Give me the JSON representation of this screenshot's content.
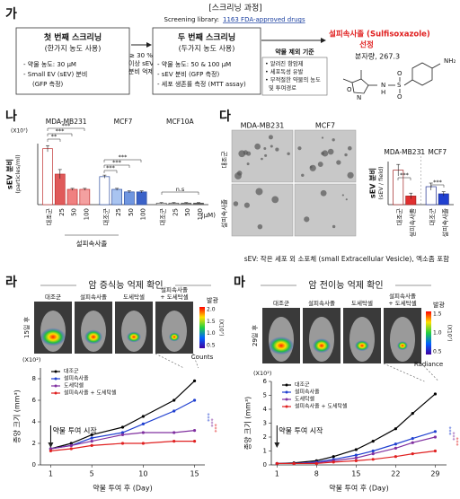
{
  "screening": {
    "letter": "가",
    "title": "[스크리닝 과정]",
    "library_label": "Screening library:",
    "library": "1163 FDA-approved drugs",
    "first": {
      "title": "첫 번째 스크리닝",
      "subtitle": "(한가지 농도 사용)",
      "items": [
        "- 약물 농도: 30 μM",
        "- Small EV (sEV) 분비",
        "(GFP 측정)"
      ]
    },
    "criterion": [
      "≥ 30 %",
      "이상 sEV",
      "분비 억제"
    ],
    "second": {
      "title": "두 번째 스크리닝",
      "subtitle": "(두가지 농도 사용)",
      "items": [
        "- 약물 농도: 50 & 100 μM",
        "- sEV 분비 (GFP 측정)",
        "- 세포 생존률 측정 (MTT assay)"
      ]
    },
    "exclusion": {
      "title": "약물 제외 기준",
      "items": [
        "• 알려진 항암제",
        "• 세포독성 유발",
        "• 부적절한 약물의 농도",
        "  및 투여경로"
      ]
    },
    "result": {
      "name": "설피속사졸 (Sulfisoxazole)",
      "selected": "선정",
      "weight": "분자량, 267.3",
      "atoms": [
        "NH₂",
        "O",
        "S",
        "O",
        "N",
        "H",
        "N",
        "O"
      ]
    }
  },
  "panels": {
    "b": "나",
    "c": "다",
    "d": "라",
    "e": "마"
  },
  "micrographs": {
    "columns": [
      "MDA-MB231",
      "MCF7"
    ],
    "rows": [
      "대조군",
      "설피속사졸"
    ]
  },
  "footnote": "sEV: 작은 세포 외 소포체 (small Extracellular Vesicle), 엑소좀 포함",
  "imaging": [
    {
      "title": "암 증식능 억제 확인",
      "day": "15일 후",
      "groups": [
        "대조군",
        "설피속사졸",
        "도세탁셀",
        [
          "설피속사졸",
          "+ 도세탁셀"
        ]
      ],
      "scale_title": "발광",
      "scale_unit": "(X10⁷)",
      "scale_ticks": [
        "2.0",
        "1.5",
        "1.0",
        "0.5"
      ],
      "scale_label": "Counts"
    },
    {
      "title": "암 전이능 억제 확인",
      "day": "29일 후",
      "groups": [
        "대조군",
        "설피속사졸",
        "도세탁셀",
        [
          "설피속사졸",
          "+ 도세탁셀"
        ]
      ],
      "scale_title": "발광",
      "scale_unit": "(X10⁷)",
      "scale_ticks": [
        "1.5",
        "1.0",
        "0.5"
      ],
      "scale_label": "Radiance"
    }
  ],
  "chart_data": [
    {
      "type": "bar",
      "ylabel": "sEV 분비",
      "ylabel_unit": "(particles/ml)",
      "scale_label": "(X10⁷)",
      "xlabel": "설피속사졸",
      "unit_label": "(μM)",
      "categories": [
        "대조군",
        "25",
        "50",
        "100"
      ],
      "ylim": [
        0,
        12
      ],
      "series": [
        {
          "name": "MDA-MB231",
          "values": [
            11,
            6,
            3,
            3
          ],
          "errors": [
            0.6,
            0.9,
            0.2,
            0.2
          ],
          "colors": [
            "#ffffff",
            "#e05a5a",
            "#f08080",
            "#f4a0a0"
          ],
          "stroke": "#c03030"
        },
        {
          "name": "MCF7",
          "values": [
            5.5,
            3,
            2.5,
            2.5
          ],
          "errors": [
            0.3,
            0.2,
            0.2,
            0.2
          ],
          "colors": [
            "#ffffff",
            "#a9c4f0",
            "#6f96e0",
            "#3b62c8"
          ],
          "stroke": "#3050a0"
        },
        {
          "name": "MCF10A",
          "values": [
            0.3,
            0.3,
            0.3,
            0.3
          ],
          "errors": [
            0.1,
            0.1,
            0.1,
            0.1
          ],
          "colors": [
            "#ffffff",
            "#cccccc",
            "#999999",
            "#666666"
          ],
          "stroke": "#555555"
        }
      ],
      "annotations": [
        "***",
        "***",
        "**",
        "***",
        "***",
        "***",
        "n.s"
      ]
    },
    {
      "type": "bar",
      "ylabel": "sEV 분비",
      "ylabel_unit": "(sEV / field)",
      "categories": [
        "대조군",
        "설피속사졸"
      ],
      "ylim": [
        0,
        60
      ],
      "series": [
        {
          "name": "MDA-MB231",
          "values": [
            48,
            12
          ],
          "errors": [
            8,
            4
          ],
          "colors": [
            "#ffffff",
            "#e03030"
          ],
          "stroke": "#a02020"
        },
        {
          "name": "MCF7",
          "values": [
            25,
            15
          ],
          "errors": [
            5,
            3
          ],
          "colors": [
            "#ffffff",
            "#2040d0"
          ],
          "stroke": "#203090"
        }
      ],
      "annotations": [
        "***",
        "***"
      ]
    },
    {
      "type": "line",
      "xlabel": "약물 투여 후 (Day)",
      "ylabel": "종양 크기 (mm³)",
      "scale_label": "(X10²)",
      "legend": "top-left",
      "x": [
        1,
        3,
        5,
        8,
        10,
        13,
        15
      ],
      "xlim": [
        0,
        16
      ],
      "xticks": [
        1,
        5,
        10,
        15
      ],
      "ylim": [
        0,
        9
      ],
      "yticks": [
        0,
        2,
        4,
        6,
        8
      ],
      "series": [
        {
          "name": "대조군",
          "color": "#000000",
          "values": [
            1.5,
            2,
            2.8,
            3.5,
            4.5,
            6,
            7.8
          ]
        },
        {
          "name": "설피속사졸",
          "color": "#2040d0",
          "values": [
            1.5,
            1.8,
            2.5,
            3,
            3.8,
            5,
            6
          ]
        },
        {
          "name": "도세탁셀",
          "color": "#8030a0",
          "values": [
            1.5,
            1.8,
            2.2,
            2.8,
            3,
            3,
            3.2
          ]
        },
        {
          "name": "설피속사졸 + 도세탁셀",
          "color": "#e02020",
          "values": [
            1.3,
            1.5,
            1.8,
            2,
            2,
            2.2,
            2.2
          ]
        }
      ],
      "annotations": [
        {
          "text": "약물 투여 시작",
          "color": "#000000"
        },
        {
          "text": "***",
          "color": "#2040d0"
        },
        {
          "text": "***",
          "color": "#8030a0"
        },
        {
          "text": "***",
          "color": "#e02020"
        }
      ]
    },
    {
      "type": "line",
      "xlabel": "약물 투여 후 (Day)",
      "ylabel": "종양 크기 (mm³)",
      "scale_label": "(X10²)",
      "legend": "top-left",
      "x": [
        1,
        4,
        8,
        11,
        15,
        18,
        22,
        25,
        29
      ],
      "xlim": [
        0,
        31
      ],
      "xticks": [
        1,
        8,
        15,
        22,
        29
      ],
      "ylim": [
        0,
        6
      ],
      "yticks": [
        0,
        1,
        2,
        3,
        4,
        5,
        6
      ],
      "series": [
        {
          "name": "대조군",
          "color": "#000000",
          "values": [
            0.1,
            0.15,
            0.3,
            0.6,
            1.1,
            1.7,
            2.6,
            3.7,
            5.1
          ]
        },
        {
          "name": "설피속사졸",
          "color": "#2040d0",
          "values": [
            0.1,
            0.1,
            0.2,
            0.4,
            0.7,
            1,
            1.5,
            1.9,
            2.4
          ]
        },
        {
          "name": "도세탁셀",
          "color": "#8030a0",
          "values": [
            0.1,
            0.1,
            0.15,
            0.3,
            0.5,
            0.8,
            1.2,
            1.6,
            2
          ]
        },
        {
          "name": "설피속사졸 + 도세탁셀",
          "color": "#e02020",
          "values": [
            0.1,
            0.1,
            0.1,
            0.2,
            0.3,
            0.4,
            0.6,
            0.8,
            1
          ]
        }
      ],
      "annotations": [
        {
          "text": "약물 투여 시작",
          "color": "#000000"
        },
        {
          "text": "***",
          "color": "#2040d0"
        },
        {
          "text": "***",
          "color": "#8030a0"
        },
        {
          "text": "***",
          "color": "#e02020"
        }
      ]
    }
  ]
}
